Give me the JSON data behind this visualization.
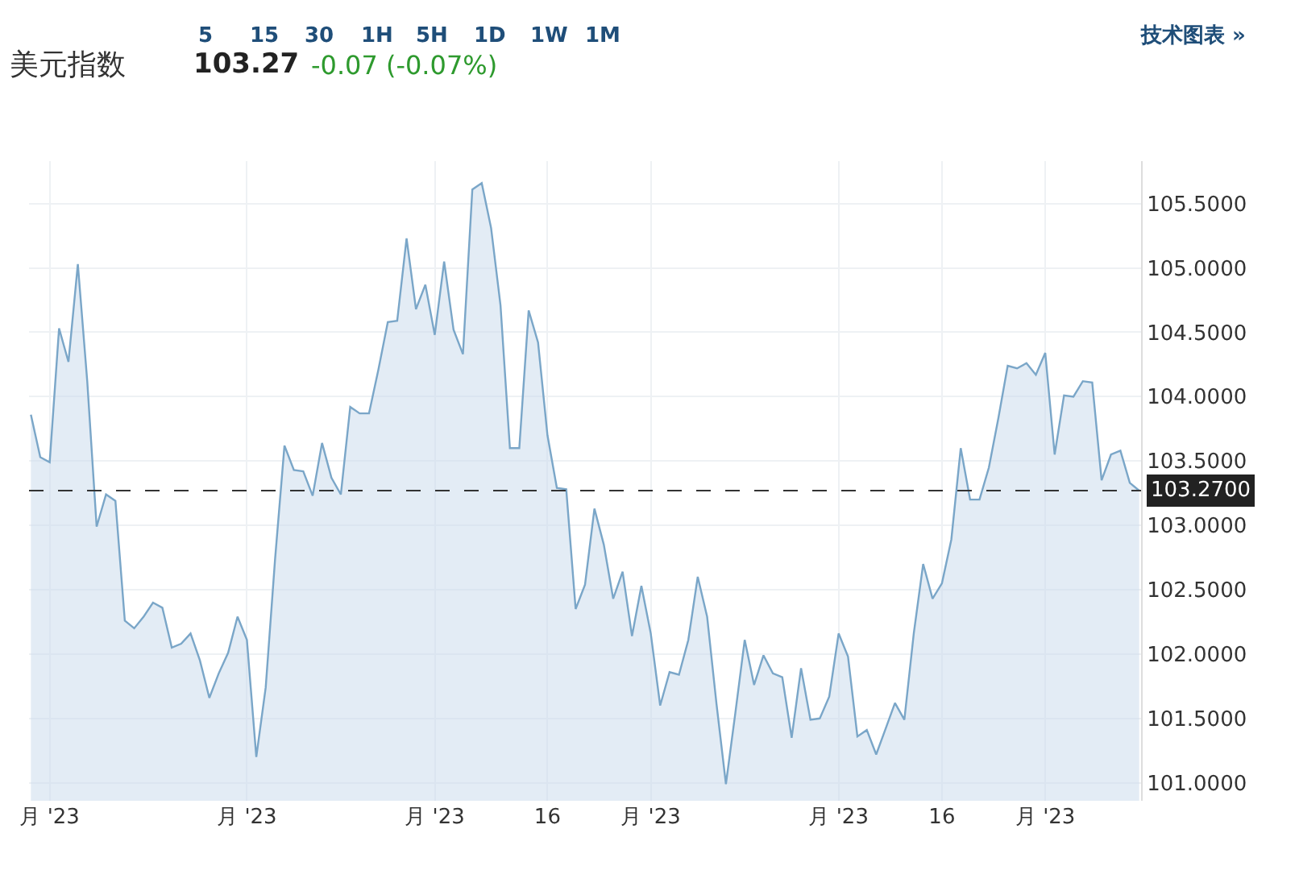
{
  "chart_data": {
    "type": "area",
    "title": "美元指数",
    "subtitle": "103.27",
    "annotations": [
      "-0.07 (-0.07%)",
      "5",
      "15",
      "30",
      "1H",
      "5H",
      "1D",
      "1W",
      "1M",
      "技术图表 »"
    ],
    "categories": [
      null,
      null,
      "月 '23",
      null,
      null,
      null,
      null,
      null,
      null,
      null,
      null,
      null,
      null,
      null,
      null,
      null,
      null,
      null,
      null,
      null,
      null,
      null,
      null,
      "月 '23",
      null,
      null,
      null,
      null,
      null,
      null,
      null,
      null,
      null,
      null,
      null,
      null,
      null,
      null,
      null,
      null,
      null,
      null,
      null,
      "月 '23",
      null,
      null,
      null,
      null,
      null,
      null,
      null,
      null,
      null,
      null,
      null,
      "16",
      null,
      null,
      null,
      null,
      null,
      null,
      null,
      null,
      null,
      null,
      "月 '23",
      null,
      null,
      null,
      null,
      null,
      null,
      null,
      null,
      null,
      null,
      null,
      null,
      null,
      null,
      null,
      null,
      null,
      null,
      null,
      "月 '23",
      null,
      null,
      null,
      null,
      null,
      null,
      null,
      null,
      null,
      null,
      "16",
      null,
      null,
      null,
      null,
      null,
      null,
      null,
      null,
      null,
      null,
      "月 '23",
      null,
      null,
      null,
      null,
      null,
      null,
      null,
      null,
      null,
      null
    ],
    "series": [
      {
        "color": "#7aa6c8",
        "values": [
          103.86,
          103.53,
          103.49,
          104.53,
          104.27,
          105.03,
          104.12,
          102.99,
          103.24,
          103.19,
          102.26,
          102.2,
          102.29,
          102.4,
          102.36,
          102.05,
          102.08,
          102.16,
          101.95,
          101.66,
          101.85,
          102.01,
          102.29,
          102.11,
          101.2,
          101.74,
          102.74,
          103.62,
          103.43,
          103.42,
          103.23,
          103.64,
          103.37,
          103.24,
          103.92,
          103.87,
          103.87,
          104.21,
          104.58,
          104.59,
          105.23,
          104.68,
          104.87,
          104.48,
          105.05,
          104.52,
          104.33,
          105.61,
          105.66,
          105.31,
          104.71,
          103.6,
          103.6,
          104.67,
          104.42,
          103.7,
          103.29,
          103.28,
          102.35,
          102.54,
          103.13,
          102.85,
          102.43,
          102.64,
          102.14,
          102.53,
          102.16,
          101.6,
          101.86,
          101.84,
          102.11,
          102.6,
          102.29,
          101.61,
          100.99,
          101.54,
          102.11,
          101.76,
          101.99,
          101.85,
          101.82,
          101.35,
          101.89,
          101.49,
          101.5,
          101.67,
          102.16,
          101.98,
          101.36,
          101.41,
          101.22,
          101.42,
          101.62,
          101.49,
          102.16,
          102.7,
          102.43,
          102.55,
          102.89,
          103.6,
          103.2,
          103.2,
          103.45,
          103.83,
          104.24,
          104.22,
          104.26,
          104.17,
          104.34,
          103.55,
          104.01,
          104.0,
          104.12,
          104.11,
          103.35,
          103.55,
          103.58,
          103.33,
          103.27
        ]
      }
    ],
    "ylim": [
      100.86,
      105.83
    ],
    "yticks": [
      {
        "value": 101,
        "label": "101.0000"
      },
      {
        "value": 101.5,
        "label": "101.5000"
      },
      {
        "value": 102,
        "label": "102.0000"
      },
      {
        "value": 102.5,
        "label": "102.5000"
      },
      {
        "value": 103,
        "label": "103.0000"
      },
      {
        "value": 103.5,
        "label": "103.5000"
      },
      {
        "value": 104,
        "label": "104.0000"
      },
      {
        "value": 104.5,
        "label": "104.5000"
      },
      {
        "value": 105,
        "label": "105.0000"
      },
      {
        "value": 105.5,
        "label": "105.5000"
      }
    ],
    "ref_lines": [
      {
        "axis": "y",
        "value": 103.27,
        "label": "103.2700",
        "color": "#333333",
        "line_style": "dashed"
      }
    ],
    "grid": true
  }
}
